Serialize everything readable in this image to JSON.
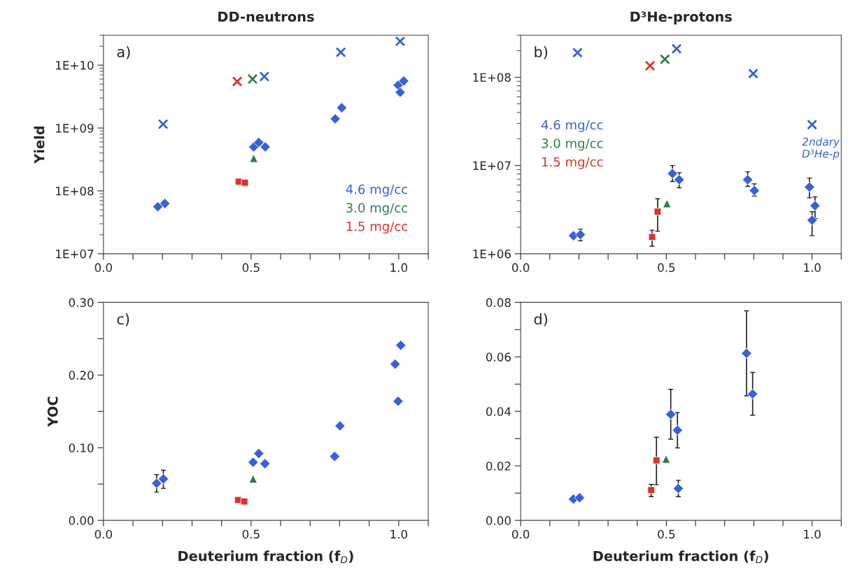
{
  "chart_data": [
    {
      "type": "scatter",
      "title": "DD-neutrons",
      "ylabel": "Yield",
      "log": "y",
      "legend": "lower right",
      "xlim": [
        0,
        1.1
      ],
      "xticks": [
        {
          "value": 0,
          "label": "0.0"
        },
        {
          "value": 0.1,
          "label": null
        },
        {
          "value": 0.2,
          "label": null
        },
        {
          "value": 0.3,
          "label": null
        },
        {
          "value": 0.4,
          "label": null
        },
        {
          "value": 0.5,
          "label": "0.5"
        },
        {
          "value": 0.6,
          "label": null
        },
        {
          "value": 0.7,
          "label": null
        },
        {
          "value": 0.8,
          "label": null
        },
        {
          "value": 0.9,
          "label": null
        },
        {
          "value": 1.0,
          "label": "1.0"
        },
        {
          "value": 1.1,
          "label": null
        }
      ],
      "ylim": [
        10000000.0,
        30000000000.0
      ],
      "yticks": [
        {
          "value": 10000000.0,
          "label": "1E+07"
        },
        {
          "value": 100000000.0,
          "label": "1E+08"
        },
        {
          "value": 1000000000.0,
          "label": "1E+09"
        },
        {
          "value": 10000000000.0,
          "label": "1E+10"
        }
      ],
      "annotations": [
        "a)"
      ],
      "series": [
        {
          "name": "4.6 mg/cc",
          "color": "#3a5fd9",
          "marker": "diamond",
          "x": [
            0.184,
            0.208,
            0.509,
            0.526,
            0.548,
            0.785,
            0.807,
            0.998,
            1.017,
            1.005
          ],
          "values": [
            56000000.0,
            63000000.0,
            500000000.0,
            590000000.0,
            500000000.0,
            1400000000.0,
            2100000000.0,
            4800000000.0,
            5600000000.0,
            3700000000.0
          ]
        },
        {
          "name": "3.0 mg/cc",
          "color": "#2e7d4e",
          "marker": "triangle",
          "x": [
            0.509
          ],
          "values": [
            330000000.0
          ]
        },
        {
          "name": "1.5 mg/cc",
          "color": "#d9342b",
          "marker": "square",
          "x": [
            0.458,
            0.479
          ],
          "values": [
            140000000.0,
            135000000.0
          ]
        },
        {
          "color": "#3a5fd9",
          "marker": "cross",
          "x": [
            0.202,
            0.545,
            0.804,
            1.005
          ],
          "values": [
            1150000000.0,
            6600000000.0,
            16000000000.0,
            24000000000.0
          ]
        },
        {
          "color": "#2e7d4e",
          "marker": "cross",
          "x": [
            0.505
          ],
          "values": [
            6000000000.0
          ]
        },
        {
          "color": "#d9342b",
          "marker": "cross",
          "x": [
            0.453
          ],
          "values": [
            5500000000.0
          ]
        }
      ]
    },
    {
      "type": "scatter",
      "title": "D³He-protons",
      "log": "y",
      "legend": "left",
      "xlim": [
        0,
        1.1
      ],
      "xticks": [
        {
          "value": 0,
          "label": "0.0"
        },
        {
          "value": 0.1,
          "label": null
        },
        {
          "value": 0.2,
          "label": null
        },
        {
          "value": 0.3,
          "label": null
        },
        {
          "value": 0.4,
          "label": null
        },
        {
          "value": 0.5,
          "label": "0.5"
        },
        {
          "value": 0.6,
          "label": null
        },
        {
          "value": 0.7,
          "label": null
        },
        {
          "value": 0.8,
          "label": null
        },
        {
          "value": 0.9,
          "label": null
        },
        {
          "value": 1.0,
          "label": "1.0"
        },
        {
          "value": 1.1,
          "label": null
        }
      ],
      "ylim": [
        1000000.0,
        300000000.0
      ],
      "yticks": [
        {
          "value": 1000000.0,
          "label": "1E+06"
        },
        {
          "value": 10000000.0,
          "label": "1E+07"
        },
        {
          "value": 100000000.0,
          "label": "1E+08"
        }
      ],
      "annotations": [
        "b)",
        "2ndary\nD³He-p"
      ],
      "series": [
        {
          "name": "4.6 mg/cc",
          "color": "#3a5fd9",
          "marker": "diamond",
          "x": [
            0.181,
            0.205,
            0.521,
            0.544,
            0.779,
            0.802
          ],
          "values": [
            1600000.0,
            1650000.0,
            8100000.0,
            6900000.0,
            6900000.0,
            5200000.0
          ],
          "errors": [
            null,
            [
              1400000.0,
              1900000.0
            ],
            [
              6600000.0,
              10000000.0
            ],
            [
              5600000.0,
              8300000.0
            ],
            [
              5800000.0,
              8500000.0
            ],
            [
              4500000.0,
              6200000.0
            ]
          ]
        },
        {
          "color": "#3a5fd9",
          "marker": "diamond",
          "x": [
            0.991,
            1.01,
            1.0
          ],
          "values": [
            5700000.0,
            3500000.0,
            2400000.0
          ],
          "errors": [
            [
              4300000.0,
              7200000.0
            ],
            [
              2500000.0,
              4400000.0
            ],
            [
              1600000.0,
              3000000.0
            ]
          ]
        },
        {
          "name": "3.0 mg/cc",
          "color": "#2e7d4e",
          "marker": "triangle",
          "x": [
            0.502
          ],
          "values": [
            3700000.0
          ]
        },
        {
          "name": "1.5 mg/cc",
          "color": "#d9342b",
          "marker": "square",
          "x": [
            0.47,
            0.451
          ],
          "values": [
            3000000.0,
            1550000.0
          ],
          "errors": [
            [
              1800000.0,
              4200000.0
            ],
            [
              1220000.0,
              1850000.0
            ]
          ]
        },
        {
          "color": "#3a5fd9",
          "marker": "cross",
          "x": [
            0.195,
            0.535,
            0.798,
            1.0
          ],
          "values": [
            190000000.0,
            210000000.0,
            110000000.0,
            29000000.0
          ]
        },
        {
          "color": "#2e7d4e",
          "marker": "cross",
          "x": [
            0.495
          ],
          "values": [
            160000000.0
          ]
        },
        {
          "color": "#d9342b",
          "marker": "cross",
          "x": [
            0.444
          ],
          "values": [
            135000000.0
          ]
        }
      ]
    },
    {
      "type": "scatter",
      "ylabel": "YOC",
      "xlabel": "Deuterium fraction (f$_{D}$)",
      "xlim": [
        0,
        1.1
      ],
      "xticks": [
        {
          "value": 0,
          "label": "0.0"
        },
        {
          "value": 0.1,
          "label": null
        },
        {
          "value": 0.2,
          "label": null
        },
        {
          "value": 0.3,
          "label": null
        },
        {
          "value": 0.4,
          "label": null
        },
        {
          "value": 0.5,
          "label": "0.5"
        },
        {
          "value": 0.6,
          "label": null
        },
        {
          "value": 0.7,
          "label": null
        },
        {
          "value": 0.8,
          "label": null
        },
        {
          "value": 0.9,
          "label": null
        },
        {
          "value": 1.0,
          "label": "1.0"
        },
        {
          "value": 1.1,
          "label": null
        }
      ],
      "ylim": [
        0,
        0.3
      ],
      "yticks": [
        {
          "value": 0,
          "label": "0.00"
        },
        {
          "value": 0.05,
          "label": null
        },
        {
          "value": 0.1,
          "label": "0.10"
        },
        {
          "value": 0.15,
          "label": null
        },
        {
          "value": 0.2,
          "label": "0.20"
        },
        {
          "value": 0.25,
          "label": null
        },
        {
          "value": 0.3,
          "label": "0.30"
        }
      ],
      "annotations": [
        "c)"
      ],
      "series": [
        {
          "color": "#3a5fd9",
          "marker": "diamond",
          "x": [
            0.18,
            0.203,
            0.507,
            0.526,
            0.547,
            0.783,
            0.801,
            0.988,
            1.007,
            0.998
          ],
          "values": [
            0.051,
            0.057,
            0.08,
            0.092,
            0.078,
            0.088,
            0.13,
            0.215,
            0.241,
            0.164
          ],
          "errors": [
            [
              0.039,
              0.063
            ],
            [
              0.044,
              0.069
            ],
            null,
            null,
            null,
            null,
            null,
            null,
            null,
            null
          ]
        },
        {
          "color": "#2e7d4e",
          "marker": "triangle",
          "x": [
            0.507
          ],
          "values": [
            0.057
          ]
        },
        {
          "color": "#d9342b",
          "marker": "square",
          "x": [
            0.456,
            0.477
          ],
          "values": [
            0.028,
            0.026
          ]
        }
      ]
    },
    {
      "type": "scatter",
      "xlabel": "Deuterium fraction (f$_{D}$)",
      "xlim": [
        0,
        1.1
      ],
      "xticks": [
        {
          "value": 0,
          "label": "0.0"
        },
        {
          "value": 0.1,
          "label": null
        },
        {
          "value": 0.2,
          "label": null
        },
        {
          "value": 0.3,
          "label": null
        },
        {
          "value": 0.4,
          "label": null
        },
        {
          "value": 0.5,
          "label": "0.5"
        },
        {
          "value": 0.6,
          "label": null
        },
        {
          "value": 0.7,
          "label": null
        },
        {
          "value": 0.8,
          "label": null
        },
        {
          "value": 0.9,
          "label": null
        },
        {
          "value": 1.0,
          "label": "1.0"
        },
        {
          "value": 1.1,
          "label": null
        }
      ],
      "ylim": [
        0,
        0.08
      ],
      "yticks": [
        {
          "value": 0,
          "label": "0.00"
        },
        {
          "value": 0.01,
          "label": null
        },
        {
          "value": 0.02,
          "label": "0.02"
        },
        {
          "value": 0.03,
          "label": null
        },
        {
          "value": 0.04,
          "label": "0.04"
        },
        {
          "value": 0.05,
          "label": null
        },
        {
          "value": 0.06,
          "label": "0.06"
        },
        {
          "value": 0.07,
          "label": null
        },
        {
          "value": 0.08,
          "label": "0.08"
        }
      ],
      "annotations": [
        "d)"
      ],
      "series": [
        {
          "color": "#3a5fd9",
          "marker": "diamond",
          "x": [
            0.181,
            0.202,
            0.515,
            0.538,
            0.541,
            0.775,
            0.796
          ],
          "values": [
            0.0078,
            0.0083,
            0.0389,
            0.0331,
            0.0117,
            0.0613,
            0.0464
          ],
          "errors": [
            null,
            null,
            [
              0.0298,
              0.0481
            ],
            [
              0.0266,
              0.0396
            ],
            [
              0.0087,
              0.0147
            ],
            [
              0.0457,
              0.0769
            ],
            [
              0.0386,
              0.0543
            ]
          ]
        },
        {
          "color": "#2e7d4e",
          "marker": "triangle",
          "x": [
            0.499
          ],
          "values": [
            0.0225
          ]
        },
        {
          "color": "#d9342b",
          "marker": "square",
          "x": [
            0.466,
            0.448
          ],
          "values": [
            0.022,
            0.0111
          ],
          "errors": [
            [
              0.0131,
              0.0305
            ],
            [
              0.0087,
              0.0132
            ]
          ]
        }
      ]
    }
  ]
}
